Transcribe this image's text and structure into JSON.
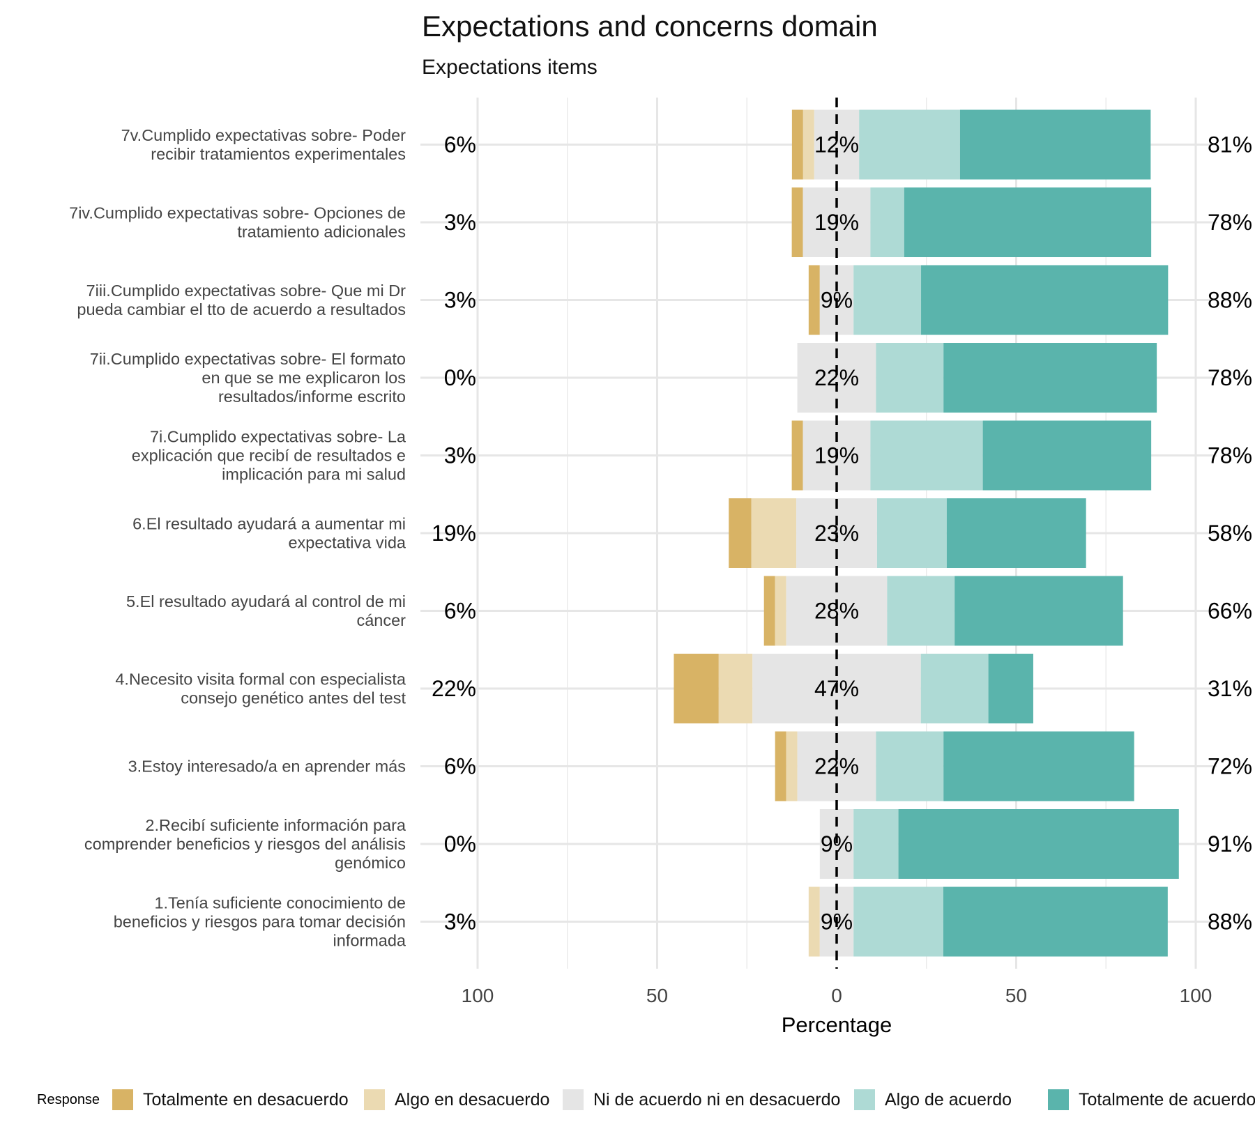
{
  "chart_data": {
    "type": "bar",
    "orientation": "horizontal-diverging",
    "title": "Expectations and concerns domain",
    "subtitle": "Expectations items",
    "xlabel": "Percentage",
    "ylabel": "",
    "xlim": [
      -100,
      100
    ],
    "xticks": [
      {
        "value": -100,
        "label": "100"
      },
      {
        "value": -50,
        "label": "50"
      },
      {
        "value": 0,
        "label": "0"
      },
      {
        "value": 50,
        "label": "50"
      },
      {
        "value": 100,
        "label": "100"
      }
    ],
    "grid": true,
    "legend": {
      "title": "Response",
      "position": "bottom",
      "entries": [
        {
          "name": "Totalmente en desacuerdo",
          "color": "#D8B365"
        },
        {
          "name": "Algo en desacuerdo",
          "color": "#EBDAB2"
        },
        {
          "name": "Ni de acuerdo ni en desacuerdo",
          "color": "#E5E5E5"
        },
        {
          "name": "Algo de acuerdo",
          "color": "#AEDAD5"
        },
        {
          "name": "Totalmente de acuerdo",
          "color": "#5AB4AC"
        }
      ]
    },
    "series_names": [
      "Totalmente en desacuerdo",
      "Algo en desacuerdo",
      "Ni de acuerdo ni en desacuerdo",
      "Algo de acuerdo",
      "Totalmente de acuerdo"
    ],
    "items": [
      {
        "label": [
          "7v.Cumplido expectativas sobre- Poder",
          "recibir tratamientos experimentales"
        ],
        "values": [
          3.1,
          3.1,
          12.5,
          28.1,
          53.1
        ],
        "low_label": "6%",
        "neutral_label": "12%",
        "high_label": "81%"
      },
      {
        "label": [
          "7iv.Cumplido expectativas sobre- Opciones de",
          "tratamiento adicionales"
        ],
        "values": [
          3.1,
          0,
          18.8,
          9.4,
          68.8
        ],
        "low_label": "3%",
        "neutral_label": "19%",
        "high_label": "78%"
      },
      {
        "label": [
          "7iii.Cumplido expectativas sobre- Que mi Dr",
          "pueda cambiar el tto de acuerdo a resultados"
        ],
        "values": [
          3.1,
          0,
          9.4,
          18.8,
          68.8
        ],
        "low_label": "3%",
        "neutral_label": "9%",
        "high_label": "88%"
      },
      {
        "label": [
          "7ii.Cumplido expectativas sobre- El formato",
          "en que se me explicaron los",
          "resultados/informe escrito"
        ],
        "values": [
          0,
          0,
          21.9,
          18.8,
          59.4
        ],
        "low_label": "0%",
        "neutral_label": "22%",
        "high_label": "78%"
      },
      {
        "label": [
          "7i.Cumplido expectativas sobre- La",
          "explicación que recibí de resultados e",
          "implicación para mi salud"
        ],
        "values": [
          3.1,
          0,
          18.8,
          31.3,
          46.9
        ],
        "low_label": "3%",
        "neutral_label": "19%",
        "high_label": "78%"
      },
      {
        "label": [
          "6.El resultado ayudará a aumentar mi",
          "expectativa vida"
        ],
        "values": [
          6.3,
          12.5,
          22.5,
          19.4,
          38.8
        ],
        "low_label": "19%",
        "neutral_label": "23%",
        "high_label": "58%"
      },
      {
        "label": [
          "5.El resultado ayudará al control de mi",
          "cáncer"
        ],
        "values": [
          3.1,
          3.1,
          28.1,
          18.8,
          46.9
        ],
        "low_label": "6%",
        "neutral_label": "28%",
        "high_label": "66%"
      },
      {
        "label": [
          "4.Necesito visita formal con especialista",
          "consejo genético antes del test"
        ],
        "values": [
          12.5,
          9.4,
          46.9,
          18.8,
          12.5
        ],
        "low_label": "22%",
        "neutral_label": "47%",
        "high_label": "31%"
      },
      {
        "label": [
          "3.Estoy interesado/a en aprender más"
        ],
        "values": [
          3.1,
          3.1,
          21.9,
          18.8,
          53.1
        ],
        "low_label": "6%",
        "neutral_label": "22%",
        "high_label": "72%"
      },
      {
        "label": [
          "2.Recibí suficiente información para",
          "comprender beneficios y riesgos del análisis",
          "genómico"
        ],
        "values": [
          0,
          0,
          9.4,
          12.5,
          78.1
        ],
        "low_label": "0%",
        "neutral_label": "9%",
        "high_label": "91%"
      },
      {
        "label": [
          "1.Tenía suficiente conocimiento de",
          "beneficios y riesgos para tomar decisión",
          "informada"
        ],
        "values": [
          0,
          3.1,
          9.4,
          25.0,
          62.5
        ],
        "low_label": "3%",
        "neutral_label": "9%",
        "high_label": "88%"
      }
    ]
  }
}
